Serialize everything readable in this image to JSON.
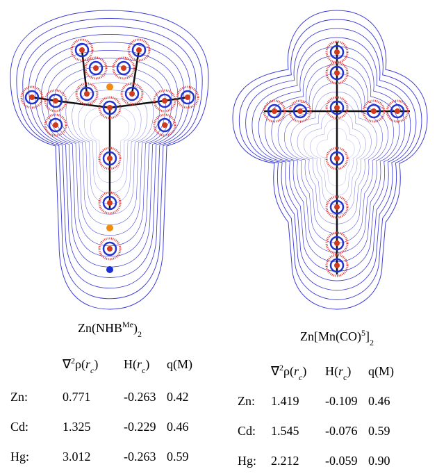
{
  "panels": [
    {
      "title": [
        "Zn(NHB",
        "Me",
        ")",
        "2"
      ],
      "headers": [
        [
          "∇",
          "2",
          "ρ(",
          "r",
          "c",
          ")"
        ],
        [
          "H(",
          "r",
          "c",
          ")"
        ],
        [
          "q(M)"
        ]
      ],
      "rows": [
        [
          "Zn:",
          "0.771",
          "-0.263",
          "0.42"
        ],
        [
          "Cd:",
          "1.325",
          "-0.229",
          "0.46"
        ],
        [
          "Hg:",
          "3.012",
          "-0.263",
          "0.59"
        ]
      ]
    },
    {
      "title": [
        "Zn[Mn(CO)",
        "5",
        "]",
        "2"
      ],
      "headers": [
        [
          "∇",
          "2",
          "ρ(",
          "r",
          "c",
          ")"
        ],
        [
          "H(",
          "r",
          "c",
          ")"
        ],
        [
          "q(M)"
        ]
      ],
      "rows": [
        [
          "Zn:",
          "1.419",
          "-0.109",
          "0.46"
        ],
        [
          "Cd:",
          "1.545",
          "-0.076",
          "0.59"
        ],
        [
          "Hg:",
          "2.212",
          "-0.059",
          "0.90"
        ]
      ]
    }
  ]
}
